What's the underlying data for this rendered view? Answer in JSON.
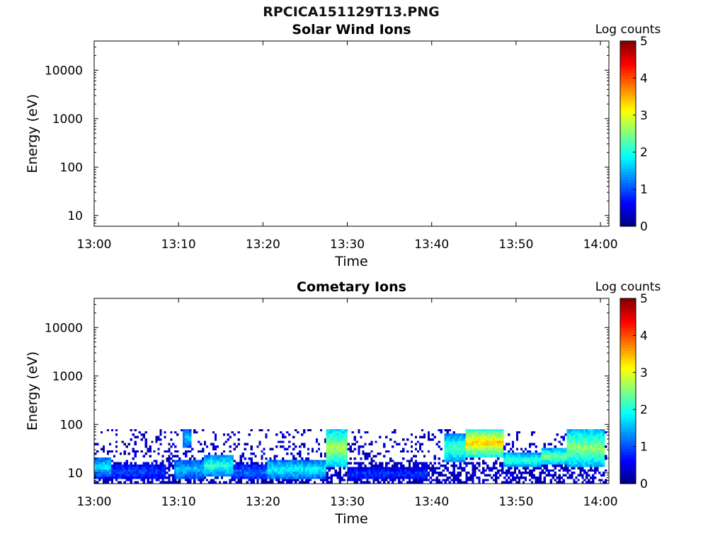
{
  "figure": {
    "filename": "RPCICA151129T13.PNG"
  },
  "chart_data": [
    {
      "type": "heatmap",
      "title": "Solar Wind Ions",
      "xlabel": "Time",
      "ylabel": "Energy (eV)",
      "x_ticks": [
        "13:00",
        "13:10",
        "13:20",
        "13:30",
        "13:40",
        "13:50",
        "14:00"
      ],
      "x_range": [
        "13:00",
        "14:01"
      ],
      "y_scale": "log",
      "y_ticks": [
        10,
        100,
        1000,
        10000
      ],
      "y_range_eV": [
        6,
        40000
      ],
      "colorbar": {
        "label": "Log counts",
        "ticks": [
          0,
          1,
          2,
          3,
          4,
          5
        ],
        "range": [
          0,
          5
        ],
        "colormap": "jet"
      },
      "description_empty": true,
      "bands": []
    },
    {
      "type": "heatmap",
      "title": "Cometary Ions",
      "xlabel": "Time",
      "ylabel": "Energy (eV)",
      "x_ticks": [
        "13:00",
        "13:10",
        "13:20",
        "13:30",
        "13:40",
        "13:50",
        "14:00"
      ],
      "x_range": [
        "13:00",
        "14:01"
      ],
      "y_scale": "log",
      "y_ticks": [
        10,
        100,
        1000,
        10000
      ],
      "y_range_eV": [
        6,
        40000
      ],
      "colorbar": {
        "label": "Log counts",
        "ticks": [
          0,
          1,
          2,
          3,
          4,
          5
        ],
        "range": [
          0,
          5
        ],
        "colormap": "jet"
      },
      "max_energy_eV": 80,
      "bands": [
        {
          "t_start": 0.0,
          "t_end": 8.5,
          "e_low": 7,
          "e_high": 14,
          "level": 1.0
        },
        {
          "t_start": 0.0,
          "t_end": 2.0,
          "e_low": 8,
          "e_high": 20,
          "level": 1.8
        },
        {
          "t_start": 9.5,
          "t_end": 13.0,
          "e_low": 7,
          "e_high": 18,
          "level": 1.6
        },
        {
          "t_start": 10.5,
          "t_end": 11.5,
          "e_low": 30,
          "e_high": 80,
          "level": 1.6
        },
        {
          "t_start": 13.0,
          "t_end": 16.5,
          "e_low": 8,
          "e_high": 22,
          "level": 2.1
        },
        {
          "t_start": 16.5,
          "t_end": 20.5,
          "e_low": 7,
          "e_high": 14,
          "level": 1.2
        },
        {
          "t_start": 20.5,
          "t_end": 27.5,
          "e_low": 7,
          "e_high": 18,
          "level": 1.9
        },
        {
          "t_start": 27.5,
          "t_end": 29.8,
          "e_low": 12,
          "e_high": 80,
          "level": 2.8
        },
        {
          "t_start": 29.8,
          "t_end": 39.5,
          "e_low": 7,
          "e_high": 12,
          "level": 0.9
        },
        {
          "t_start": 41.5,
          "t_end": 44.0,
          "e_low": 15,
          "e_high": 60,
          "level": 2.3
        },
        {
          "t_start": 44.0,
          "t_end": 48.5,
          "e_low": 20,
          "e_high": 80,
          "level": 3.4
        },
        {
          "t_start": 48.5,
          "t_end": 53.0,
          "e_low": 12,
          "e_high": 25,
          "level": 2.2
        },
        {
          "t_start": 53.0,
          "t_end": 56.0,
          "e_low": 14,
          "e_high": 30,
          "level": 2.5
        },
        {
          "t_start": 56.0,
          "t_end": 60.5,
          "e_low": 12,
          "e_high": 80,
          "level": 2.6
        }
      ]
    }
  ]
}
